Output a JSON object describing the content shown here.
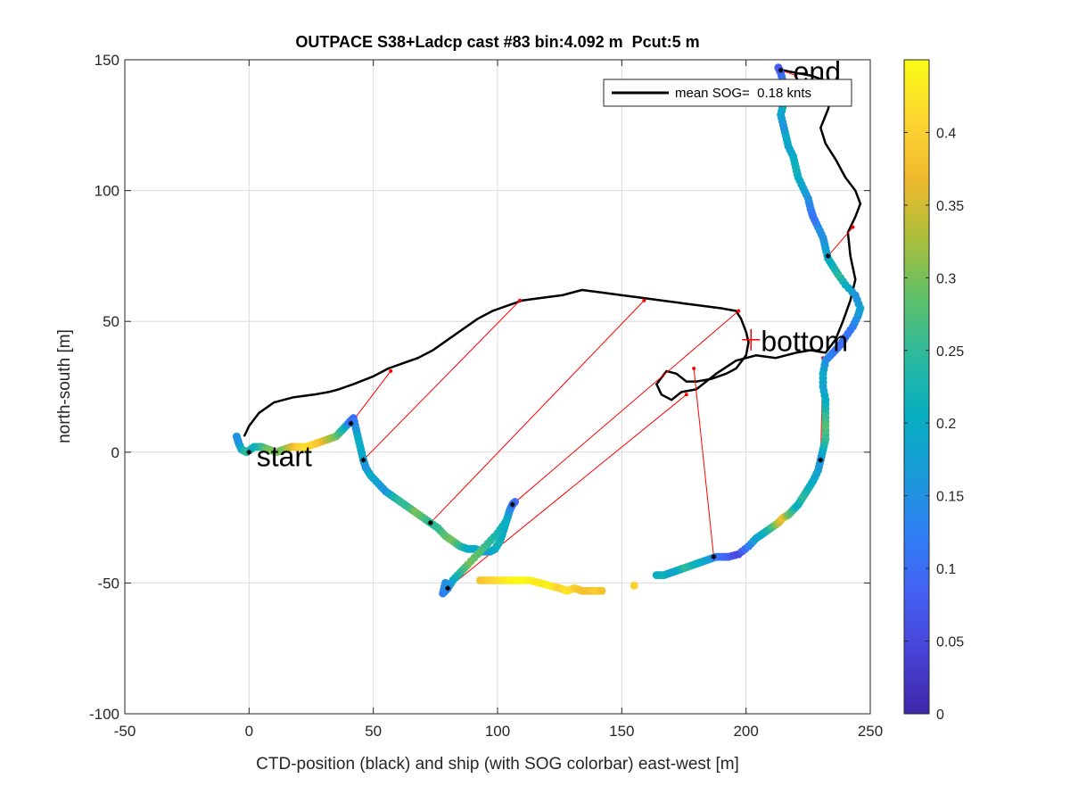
{
  "chart_data": {
    "type": "scatter",
    "title": "OUTPACE S38+Ladcp cast #83 bin:4.092 m  Pcut:5 m",
    "xlabel": "CTD-position (black) and ship (with SOG colorbar) east-west [m]",
    "ylabel": "north-south [m]",
    "xlim": [
      -50,
      250
    ],
    "ylim": [
      -100,
      150
    ],
    "x_ticks": [
      -50,
      0,
      50,
      100,
      150,
      200,
      250
    ],
    "y_ticks": [
      -100,
      -50,
      0,
      50,
      100,
      150
    ],
    "x_tick_labels": [
      "-50",
      "0",
      "50",
      "100",
      "150",
      "200",
      "250"
    ],
    "y_tick_labels": [
      "-100",
      "-50",
      "0",
      "50",
      "100",
      "150"
    ],
    "grid": true,
    "legend": {
      "position": "top-right",
      "entry": "mean SOG=  0.18 knts"
    },
    "colorbar": {
      "range": [
        0,
        0.45
      ],
      "ticks": [
        0,
        0.05,
        0.1,
        0.15,
        0.2,
        0.25,
        0.3,
        0.35,
        0.4
      ],
      "tick_labels": [
        "0",
        "0.05",
        "0.1",
        "0.15",
        "0.2",
        "0.25",
        "0.3",
        "0.35",
        "0.4"
      ],
      "colormap": [
        "#3e26a8",
        "#4742d5",
        "#4660f4",
        "#2f7ef5",
        "#1a9ad8",
        "#06aec2",
        "#2ab99e",
        "#5fc06a",
        "#aabf3a",
        "#f0b92e",
        "#fed631",
        "#f9fb14"
      ]
    },
    "annotations": [
      {
        "text": "start",
        "x": 3,
        "y": -2
      },
      {
        "text": "bottom",
        "x": 206,
        "y": 42
      },
      {
        "text": "end",
        "x": 219,
        "y": 145
      }
    ],
    "bottom_marker": {
      "x": 202,
      "y": 43
    },
    "ctd_track": [
      [
        -2,
        6
      ],
      [
        0,
        10
      ],
      [
        4,
        15
      ],
      [
        10,
        19
      ],
      [
        18,
        21
      ],
      [
        26,
        22
      ],
      [
        32,
        23
      ],
      [
        36,
        24
      ],
      [
        42,
        26
      ],
      [
        50,
        29
      ],
      [
        56,
        32
      ],
      [
        62,
        34
      ],
      [
        68,
        36
      ],
      [
        74,
        39
      ],
      [
        80,
        43
      ],
      [
        86,
        47
      ],
      [
        92,
        51
      ],
      [
        98,
        54
      ],
      [
        104,
        56
      ],
      [
        110,
        58
      ],
      [
        118,
        59
      ],
      [
        126,
        60
      ],
      [
        134,
        62
      ],
      [
        142,
        61
      ],
      [
        150,
        60
      ],
      [
        158,
        59
      ],
      [
        166,
        58
      ],
      [
        174,
        57
      ],
      [
        182,
        56
      ],
      [
        190,
        55
      ],
      [
        196,
        54
      ],
      [
        198,
        51
      ],
      [
        200,
        46
      ],
      [
        201,
        42
      ],
      [
        200,
        37
      ],
      [
        196,
        32
      ],
      [
        192,
        30
      ],
      [
        186,
        28
      ],
      [
        180,
        27
      ],
      [
        176,
        27
      ],
      [
        172,
        30
      ],
      [
        168,
        31
      ],
      [
        164,
        26
      ],
      [
        166,
        22
      ],
      [
        170,
        20
      ],
      [
        174,
        23
      ],
      [
        180,
        24
      ],
      [
        188,
        30
      ],
      [
        196,
        35
      ],
      [
        204,
        37
      ],
      [
        212,
        36
      ],
      [
        220,
        38
      ],
      [
        226,
        39
      ],
      [
        232,
        38
      ],
      [
        236,
        43
      ],
      [
        239,
        50
      ],
      [
        242,
        58
      ],
      [
        244,
        66
      ],
      [
        242,
        75
      ],
      [
        241,
        84
      ],
      [
        244,
        90
      ],
      [
        246,
        95
      ],
      [
        244,
        100
      ],
      [
        240,
        105
      ],
      [
        236,
        112
      ],
      [
        232,
        118
      ],
      [
        230,
        124
      ],
      [
        233,
        131
      ],
      [
        235,
        138
      ],
      [
        232,
        142
      ],
      [
        226,
        144
      ],
      [
        220,
        145
      ],
      [
        215,
        146
      ]
    ],
    "ship_track": [
      [
        -5,
        6,
        0.15
      ],
      [
        -4,
        3,
        0.15
      ],
      [
        -3,
        1,
        0.2
      ],
      [
        -1,
        0,
        0.25
      ],
      [
        2,
        2,
        0.2
      ],
      [
        5,
        2,
        0.25
      ],
      [
        8,
        1,
        0.3
      ],
      [
        11,
        0,
        0.3
      ],
      [
        14,
        1,
        0.3
      ],
      [
        17,
        2,
        0.35
      ],
      [
        20,
        2,
        0.4
      ],
      [
        23,
        2,
        0.42
      ],
      [
        26,
        3,
        0.4
      ],
      [
        29,
        4,
        0.38
      ],
      [
        32,
        5,
        0.33
      ],
      [
        35,
        6,
        0.3
      ],
      [
        37,
        8,
        0.25
      ],
      [
        39,
        10,
        0.2
      ],
      [
        40,
        11,
        0.15
      ],
      [
        41,
        12,
        0.1
      ],
      [
        42,
        13,
        0.1
      ],
      [
        43,
        9,
        0.15
      ],
      [
        44,
        5,
        0.2
      ],
      [
        45,
        1,
        0.2
      ],
      [
        46,
        -3,
        0.18
      ],
      [
        47,
        -6,
        0.15
      ],
      [
        49,
        -9,
        0.2
      ],
      [
        52,
        -12,
        0.18
      ],
      [
        55,
        -15,
        0.15
      ],
      [
        58,
        -17,
        0.22
      ],
      [
        61,
        -19,
        0.25
      ],
      [
        64,
        -21,
        0.25
      ],
      [
        67,
        -23,
        0.3
      ],
      [
        70,
        -25,
        0.28
      ],
      [
        73,
        -27,
        0.25
      ],
      [
        76,
        -29,
        0.25
      ],
      [
        79,
        -32,
        0.28
      ],
      [
        82,
        -34,
        0.3
      ],
      [
        85,
        -36,
        0.25
      ],
      [
        88,
        -37,
        0.2
      ],
      [
        91,
        -37,
        0.2
      ],
      [
        94,
        -38,
        0.15
      ],
      [
        97,
        -38,
        0.18
      ],
      [
        99,
        -37,
        0.2
      ],
      [
        101,
        -34,
        0.22
      ],
      [
        102,
        -31,
        0.2
      ],
      [
        103,
        -28,
        0.18
      ],
      [
        104,
        -25,
        0.2
      ],
      [
        105,
        -22,
        0.15
      ],
      [
        106,
        -20,
        0.12
      ],
      [
        107,
        -19,
        0.1
      ],
      [
        103,
        -27,
        0.2
      ],
      [
        100,
        -31,
        0.22
      ],
      [
        96,
        -35,
        0.25
      ],
      [
        92,
        -39,
        0.28
      ],
      [
        88,
        -43,
        0.3
      ],
      [
        85,
        -46,
        0.25
      ],
      [
        82,
        -49,
        0.2
      ],
      [
        80,
        -52,
        0.15
      ],
      [
        78,
        -54,
        0.12
      ],
      [
        79,
        -50,
        0.15
      ],
      [
        93,
        -49,
        0.38
      ],
      [
        97,
        -49,
        0.4
      ],
      [
        101,
        -49,
        0.42
      ],
      [
        105,
        -49,
        0.44
      ],
      [
        109,
        -49,
        0.45
      ],
      [
        113,
        -49,
        0.44
      ],
      [
        117,
        -50,
        0.43
      ],
      [
        121,
        -51,
        0.44
      ],
      [
        125,
        -52,
        0.4
      ],
      [
        128,
        -53,
        0.43
      ],
      [
        131,
        -52,
        0.4
      ],
      [
        134,
        -53,
        0.38
      ],
      [
        137,
        -53,
        0.38
      ],
      [
        140,
        -53,
        0.4
      ],
      [
        142,
        -53,
        0.38
      ],
      [
        155,
        -51,
        0.4
      ],
      [
        164,
        -47,
        0.2
      ],
      [
        167,
        -47,
        0.22
      ],
      [
        170,
        -46,
        0.18
      ],
      [
        173,
        -45,
        0.2
      ],
      [
        176,
        -44,
        0.25
      ],
      [
        179,
        -43,
        0.22
      ],
      [
        182,
        -42,
        0.2
      ],
      [
        185,
        -41,
        0.18
      ],
      [
        188,
        -40,
        0.12
      ],
      [
        191,
        -40,
        0.1
      ],
      [
        193,
        -40,
        0.08
      ],
      [
        197,
        -39,
        0.05
      ],
      [
        201,
        -36,
        0.12
      ],
      [
        204,
        -33,
        0.18
      ],
      [
        207,
        -31,
        0.2
      ],
      [
        210,
        -29,
        0.25
      ],
      [
        213,
        -27,
        0.33
      ],
      [
        215,
        -25,
        0.38
      ],
      [
        217,
        -24,
        0.3
      ],
      [
        219,
        -22,
        0.25
      ],
      [
        221,
        -20,
        0.2
      ],
      [
        223,
        -17,
        0.25
      ],
      [
        225,
        -14,
        0.22
      ],
      [
        227,
        -11,
        0.2
      ],
      [
        229,
        -7,
        0.18
      ],
      [
        230,
        -3,
        0.15
      ],
      [
        231,
        1,
        0.2
      ],
      [
        232,
        5,
        0.25
      ],
      [
        232,
        10,
        0.28
      ],
      [
        232,
        15,
        0.25
      ],
      [
        232,
        20,
        0.2
      ],
      [
        231,
        25,
        0.18
      ],
      [
        231,
        30,
        0.2
      ],
      [
        232,
        35,
        0.15
      ],
      [
        235,
        38,
        0.12
      ],
      [
        238,
        41,
        0.1
      ],
      [
        240,
        44,
        0.1
      ],
      [
        243,
        48,
        0.12
      ],
      [
        245,
        52,
        0.15
      ],
      [
        246,
        55,
        0.18
      ],
      [
        244,
        60,
        0.15
      ],
      [
        240,
        64,
        0.2
      ],
      [
        237,
        68,
        0.25
      ],
      [
        235,
        71,
        0.22
      ],
      [
        233,
        74,
        0.2
      ],
      [
        232,
        78,
        0.18
      ],
      [
        231,
        82,
        0.15
      ],
      [
        229,
        86,
        0.15
      ],
      [
        227,
        90,
        0.1
      ],
      [
        226,
        93,
        0.12
      ],
      [
        225,
        97,
        0.15
      ],
      [
        223,
        101,
        0.18
      ],
      [
        221,
        105,
        0.2
      ],
      [
        220,
        109,
        0.22
      ],
      [
        219,
        113,
        0.2
      ],
      [
        217,
        117,
        0.18
      ],
      [
        216,
        121,
        0.2
      ],
      [
        215,
        125,
        0.15
      ],
      [
        214,
        129,
        0.18
      ],
      [
        215,
        133,
        0.2
      ],
      [
        216,
        137,
        0.15
      ],
      [
        215,
        141,
        0.12
      ],
      [
        214,
        145,
        0.1
      ],
      [
        213,
        147,
        0.08
      ]
    ],
    "connectors": [
      {
        "ship": [
          0,
          0
        ],
        "ctd": [
          0,
          0
        ]
      },
      {
        "ship": [
          41,
          11
        ],
        "ctd": [
          57,
          31
        ]
      },
      {
        "ship": [
          46,
          -3
        ],
        "ctd": [
          109,
          58
        ]
      },
      {
        "ship": [
          73,
          -27
        ],
        "ctd": [
          159,
          58
        ]
      },
      {
        "ship": [
          106,
          -20
        ],
        "ctd": [
          197,
          54
        ]
      },
      {
        "ship": [
          80,
          -52
        ],
        "ctd": [
          176,
          22
        ]
      },
      {
        "ship": [
          187,
          -40
        ],
        "ctd": [
          179,
          32
        ]
      },
      {
        "ship": [
          230,
          -3
        ],
        "ctd": [
          231,
          36
        ]
      },
      {
        "ship": [
          233,
          75
        ],
        "ctd": [
          243,
          86
        ]
      },
      {
        "ship": [
          214,
          146
        ],
        "ctd": [
          220,
          144
        ]
      }
    ]
  }
}
